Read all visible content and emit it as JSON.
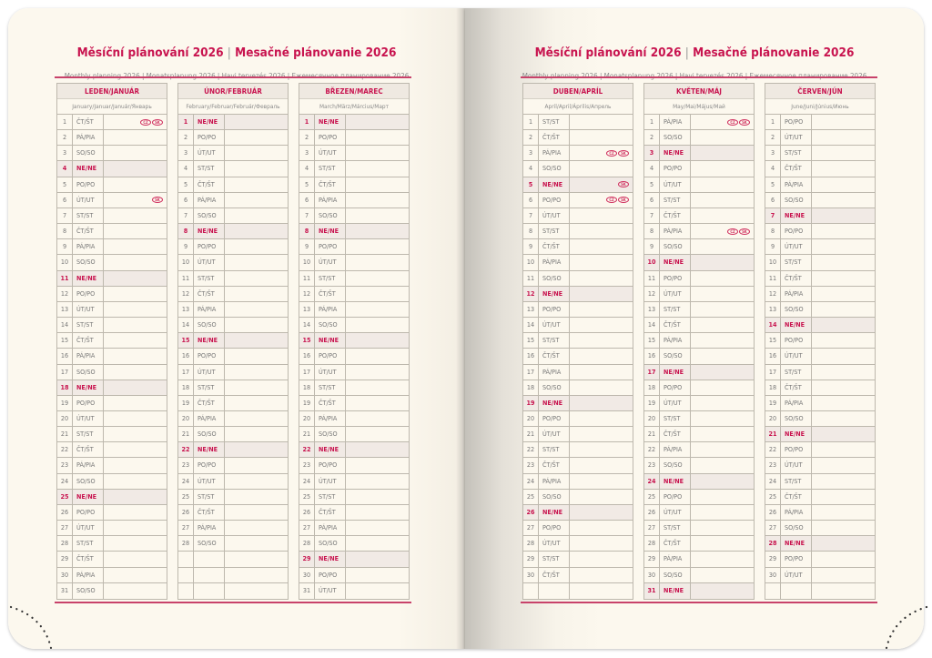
{
  "weekdays": [
    "PO/PO",
    "ÚT/UT",
    "ST/ST",
    "ČT/ŠT",
    "PÁ/PIA",
    "SO/SO",
    "NE/NE"
  ],
  "pages": [
    {
      "title_cz": "Měsíční plánování 2026",
      "title_sk": "Mesačné plánovanie 2026",
      "subtitle": "Monthly planning 2026 | Monatsplanung 2026 | Havi tervezés 2026 | Ежемесячное планирование 2026",
      "months": [
        {
          "name": "LEDEN/JANUÁR",
          "translations": "January/Januar/Január/Январь",
          "first_weekday": 3,
          "days": 31,
          "holidays": {
            "1": [
              "CZ",
              "SK"
            ],
            "6": [
              "SK"
            ]
          }
        },
        {
          "name": "ÚNOR/FEBRUÁR",
          "translations": "February/Februar/Február/Февраль",
          "first_weekday": 6,
          "days": 28,
          "holidays": {}
        },
        {
          "name": "BŘEZEN/MAREC",
          "translations": "March/März/Március/Март",
          "first_weekday": 6,
          "days": 31,
          "holidays": {}
        }
      ]
    },
    {
      "title_cz": "Měsíční plánování 2026",
      "title_sk": "Mesačné plánovanie 2026",
      "subtitle": "Monthly planning 2026 | Monatsplanung 2026 | Havi tervezés 2026 | Ежемесячное планирование 2026",
      "months": [
        {
          "name": "DUBEN/APRÍL",
          "translations": "April/April/Április/Апрель",
          "first_weekday": 2,
          "days": 30,
          "holidays": {
            "3": [
              "CZ",
              "SK"
            ],
            "5": [
              "SK"
            ],
            "6": [
              "CZ",
              "SK"
            ]
          }
        },
        {
          "name": "KVĚTEN/MÁJ",
          "translations": "May/Mai/Május/Май",
          "first_weekday": 4,
          "days": 31,
          "holidays": {
            "1": [
              "CZ",
              "SK"
            ],
            "8": [
              "CZ",
              "SK"
            ]
          }
        },
        {
          "name": "ČERVEN/JÚN",
          "translations": "June/Juni/Június/Июнь",
          "first_weekday": 0,
          "days": 30,
          "holidays": {}
        }
      ]
    }
  ],
  "colors": {
    "accent": "#c8144f",
    "page": "#fcf8ee",
    "sunday_row": "#f1eae5",
    "grid": "#bdb8ad"
  }
}
